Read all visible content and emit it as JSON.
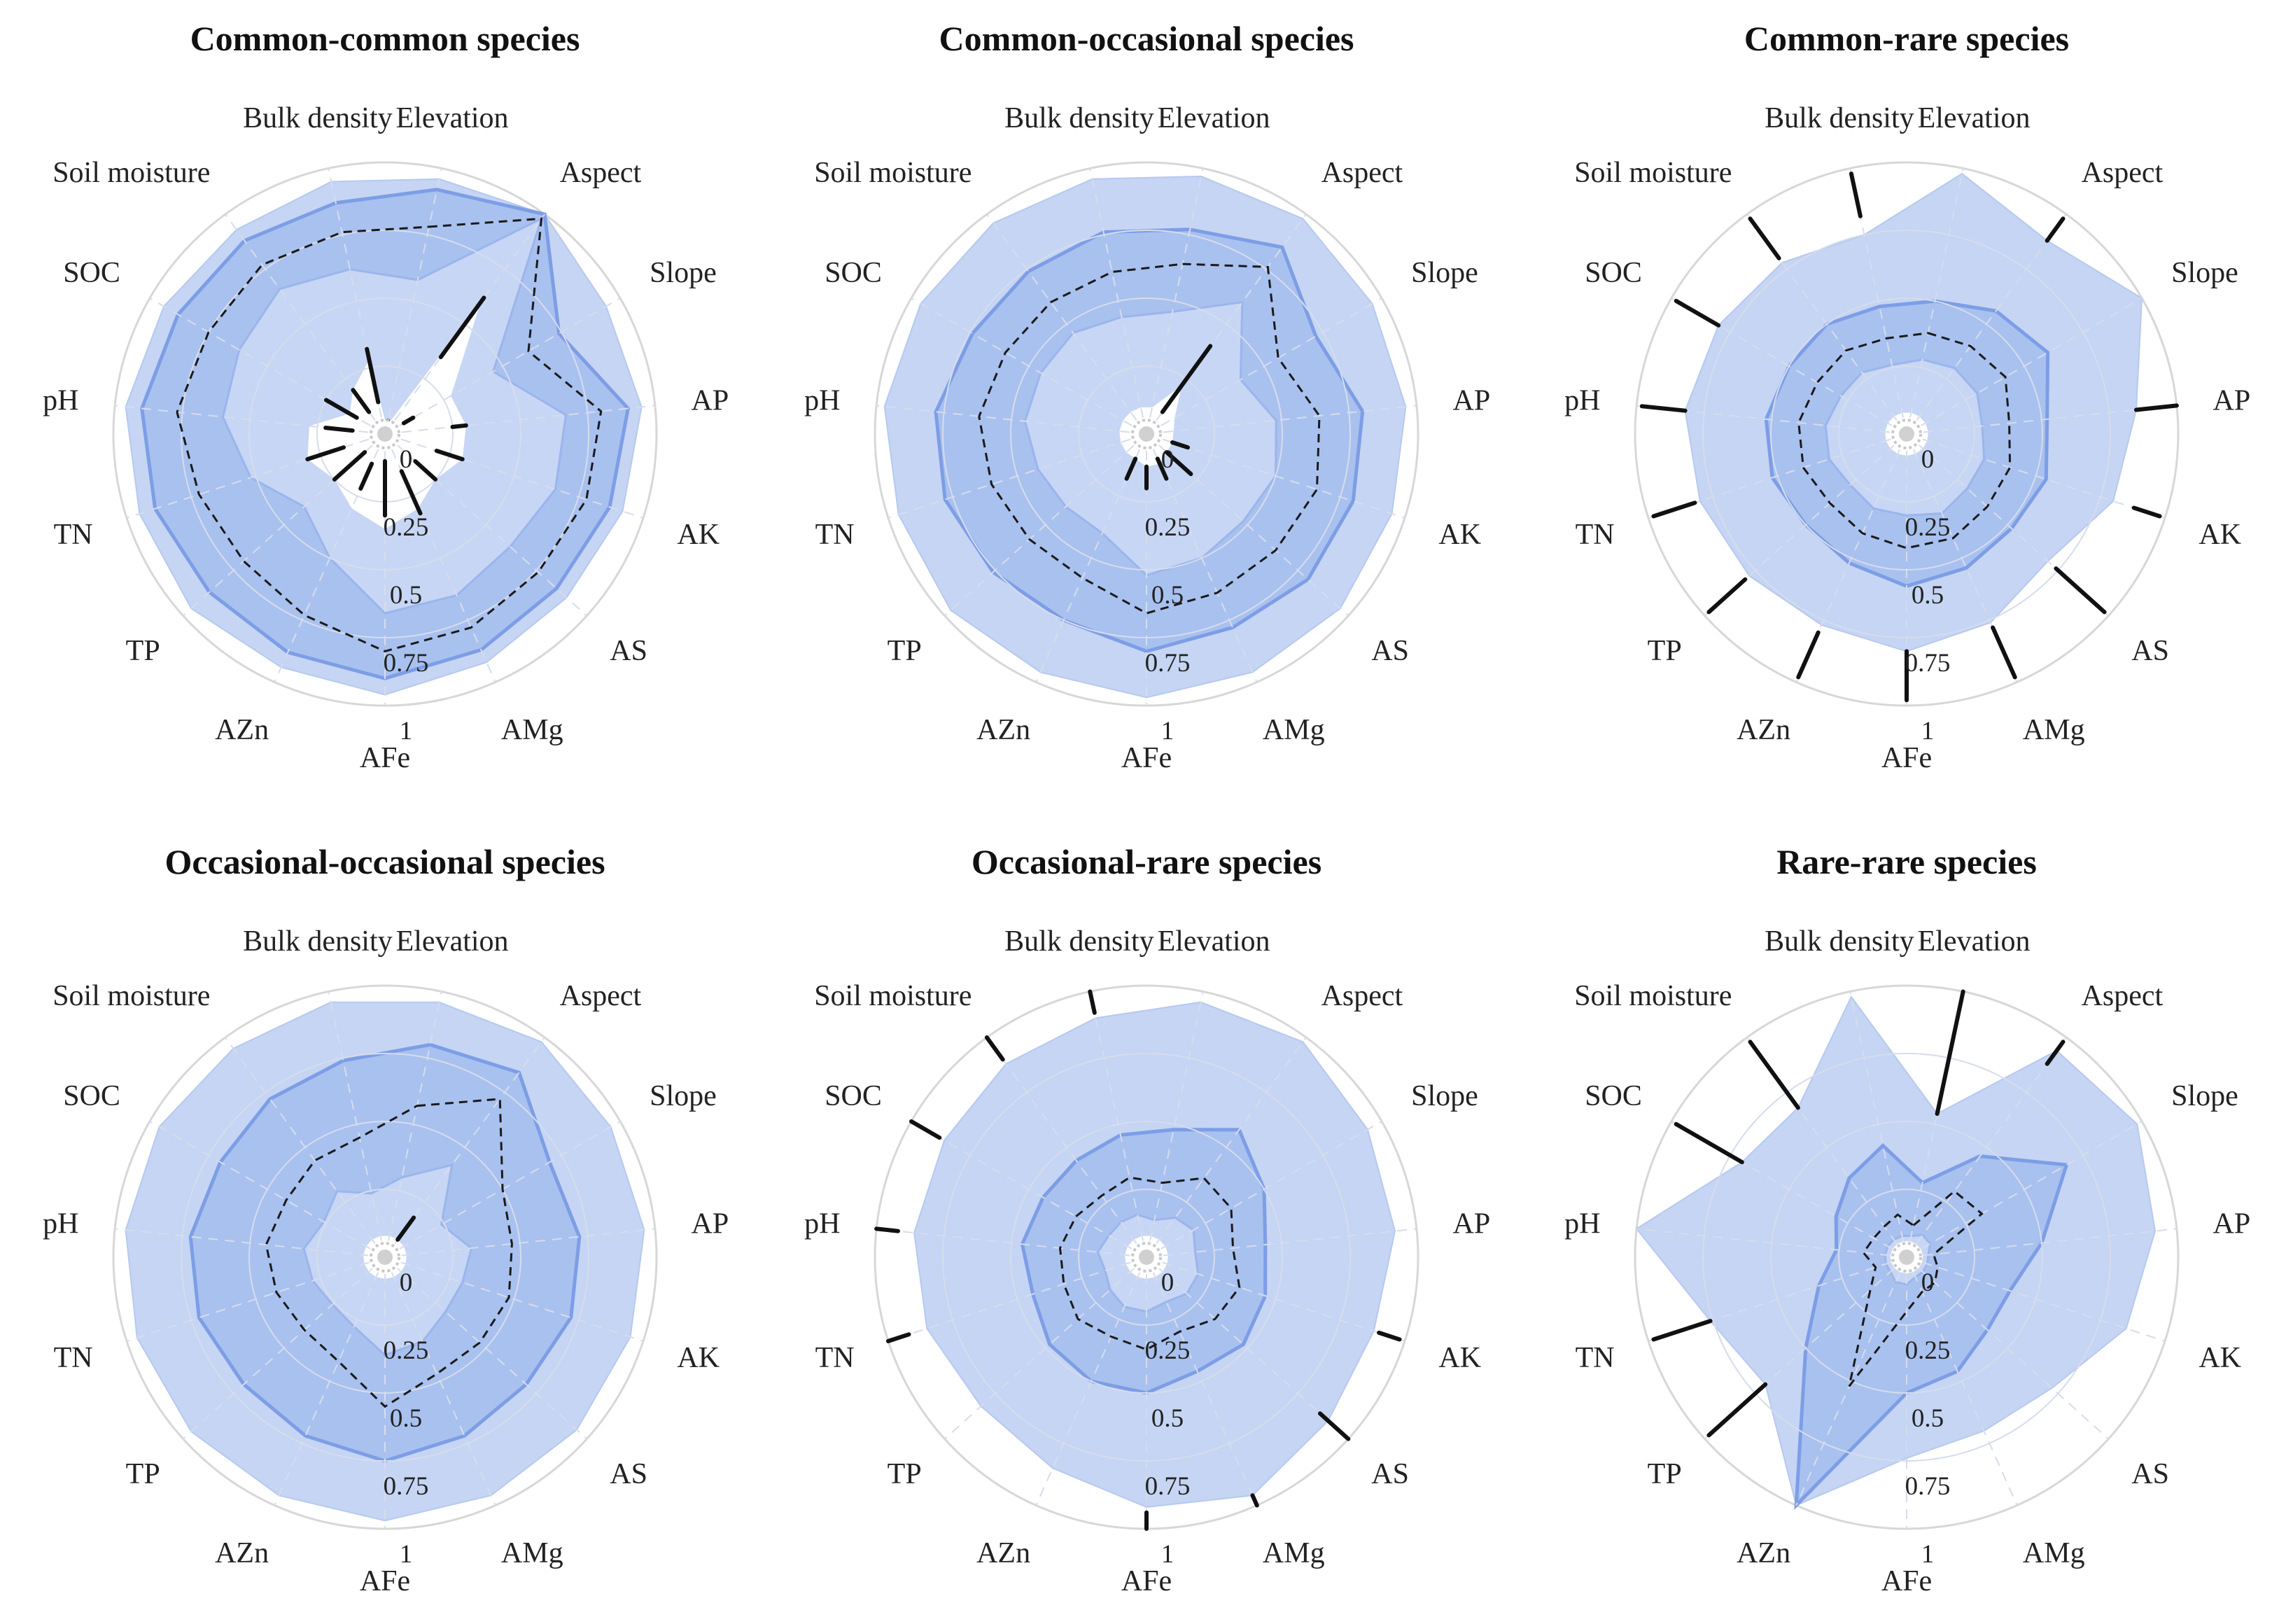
{
  "chart_data": [
    {
      "type": "radar",
      "title": "Common-common species",
      "axes": [
        "Elevation",
        "Aspect",
        "Slope",
        "AP",
        "AK",
        "AS",
        "AMg",
        "AFe",
        "AZn",
        "TP",
        "TN",
        "pH",
        "SOC",
        "Soil moisture",
        "Bulk density"
      ],
      "ticks": [
        "0",
        "0.25",
        "0.5",
        "0.75",
        "1"
      ],
      "rlim": [
        0,
        1
      ],
      "bands": {
        "outer": [
          0.96,
          1.0,
          0.94,
          0.95,
          0.92,
          0.9,
          0.92,
          0.96,
          0.94,
          0.96,
          0.95,
          0.96,
          0.94,
          0.93,
          0.95
        ],
        "q75": [
          0.92,
          1.0,
          0.74,
          0.9,
          0.87,
          0.85,
          0.87,
          0.9,
          0.88,
          0.87,
          0.89,
          0.9,
          0.88,
          0.88,
          0.87
        ],
        "median": [
          0.78,
          0.98,
          0.61,
          0.8,
          0.78,
          0.76,
          0.78,
          0.8,
          0.73,
          0.7,
          0.72,
          0.77,
          0.75,
          0.77,
          0.76
        ],
        "q25": [
          0.58,
          0.98,
          0.46,
          0.67,
          0.66,
          0.62,
          0.65,
          0.66,
          0.5,
          0.4,
          0.52,
          0.6,
          0.62,
          0.66,
          0.62
        ]
      },
      "inner_extent": [
        0.03,
        0.6,
        0.28,
        0.3,
        0.3,
        0.25,
        0.3,
        0.35,
        0.3,
        0.25,
        0.3,
        0.28,
        0.15,
        0.2,
        0.28
      ],
      "spikes": [
        {
          "axis": "Elevation",
          "from": 0.03,
          "to": 0.05
        },
        {
          "axis": "Aspect",
          "from": 0.35,
          "to": 0.62
        },
        {
          "axis": "Slope",
          "from": 0.08,
          "to": 0.12
        },
        {
          "axis": "AP",
          "from": 0.25,
          "to": 0.3
        },
        {
          "axis": "AK",
          "from": 0.2,
          "to": 0.3
        },
        {
          "axis": "AS",
          "from": 0.15,
          "to": 0.25
        },
        {
          "axis": "AMg",
          "from": 0.15,
          "to": 0.32
        },
        {
          "axis": "AFe",
          "from": 0.1,
          "to": 0.3
        },
        {
          "axis": "AZn",
          "from": 0.12,
          "to": 0.22
        },
        {
          "axis": "TP",
          "from": 0.1,
          "to": 0.25
        },
        {
          "axis": "TN",
          "from": 0.16,
          "to": 0.3
        },
        {
          "axis": "pH",
          "from": 0.12,
          "to": 0.22
        },
        {
          "axis": "SOC",
          "from": 0.12,
          "to": 0.25
        },
        {
          "axis": "Soil moisture",
          "from": 0.1,
          "to": 0.2
        },
        {
          "axis": "Bulk density",
          "from": 0.12,
          "to": 0.32
        }
      ]
    },
    {
      "type": "radar",
      "title": "Common-occasional species",
      "axes": [
        "Elevation",
        "Aspect",
        "Slope",
        "AP",
        "AK",
        "AS",
        "AMg",
        "AFe",
        "AZn",
        "TP",
        "TN",
        "pH",
        "SOC",
        "Soil moisture",
        "Bulk density"
      ],
      "ticks": [
        "0",
        "0.25",
        "0.5",
        "0.75",
        "1"
      ],
      "rlim": [
        0,
        1
      ],
      "bands": {
        "outer": [
          0.97,
          0.98,
          0.96,
          0.96,
          0.95,
          0.96,
          0.96,
          0.97,
          0.96,
          0.97,
          0.96,
          0.97,
          0.96,
          0.96,
          0.96
        ],
        "q75": [
          0.77,
          0.85,
          0.72,
          0.8,
          0.8,
          0.8,
          0.78,
          0.8,
          0.75,
          0.76,
          0.78,
          0.78,
          0.74,
          0.74,
          0.76
        ],
        "median": [
          0.64,
          0.76,
          0.56,
          0.64,
          0.66,
          0.64,
          0.64,
          0.66,
          0.58,
          0.58,
          0.6,
          0.62,
          0.6,
          0.6,
          0.61
        ],
        "q25": [
          0.46,
          0.6,
          0.4,
          0.48,
          0.5,
          0.48,
          0.5,
          0.52,
          0.4,
          0.4,
          0.42,
          0.45,
          0.45,
          0.46,
          0.44
        ]
      },
      "inner_extent": [
        0.1,
        0.22,
        0.12,
        0.1,
        0.1,
        0.1,
        0.12,
        0.12,
        0.1,
        0.1,
        0.1,
        0.1,
        0.1,
        0.1,
        0.1
      ],
      "spikes": [
        {
          "axis": "Aspect",
          "from": 0.1,
          "to": 0.4
        },
        {
          "axis": "AK",
          "from": 0.1,
          "to": 0.16
        },
        {
          "axis": "AS",
          "from": 0.1,
          "to": 0.22
        },
        {
          "axis": "AMg",
          "from": 0.1,
          "to": 0.18
        },
        {
          "axis": "AFe",
          "from": 0.12,
          "to": 0.2
        },
        {
          "axis": "AZn",
          "from": 0.1,
          "to": 0.18
        }
      ]
    },
    {
      "type": "radar",
      "title": "Common-rare species",
      "axes": [
        "Elevation",
        "Aspect",
        "Slope",
        "AP",
        "AK",
        "AS",
        "AMg",
        "AFe",
        "AZn",
        "TP",
        "TN",
        "pH",
        "SOC",
        "Soil moisture",
        "Bulk density"
      ],
      "ticks": [
        "0",
        "0.25",
        "0.5",
        "0.75",
        "1"
      ],
      "rlim": [
        0,
        1
      ],
      "bands": {
        "outer": [
          0.98,
          0.88,
          1.0,
          0.85,
          0.8,
          0.7,
          0.76,
          0.8,
          0.77,
          0.78,
          0.8,
          0.82,
          0.8,
          0.78,
          0.75
        ],
        "q75": [
          0.5,
          0.56,
          0.6,
          0.52,
          0.54,
          0.52,
          0.54,
          0.56,
          0.52,
          0.5,
          0.52,
          0.52,
          0.5,
          0.5,
          0.48
        ],
        "median": [
          0.38,
          0.4,
          0.42,
          0.38,
          0.4,
          0.4,
          0.42,
          0.42,
          0.4,
          0.38,
          0.4,
          0.4,
          0.38,
          0.38,
          0.36
        ],
        "q25": [
          0.28,
          0.3,
          0.3,
          0.28,
          0.3,
          0.3,
          0.32,
          0.3,
          0.3,
          0.28,
          0.3,
          0.3,
          0.28,
          0.28,
          0.26
        ]
      },
      "inner_extent": [
        0.08,
        0.08,
        0.08,
        0.08,
        0.08,
        0.08,
        0.08,
        0.08,
        0.08,
        0.08,
        0.08,
        0.08,
        0.08,
        0.08,
        0.08
      ],
      "spikes": [
        {
          "axis": "Bulk density",
          "from": 0.82,
          "to": 0.98
        },
        {
          "axis": "Aspect",
          "from": 0.88,
          "to": 0.98
        },
        {
          "axis": "AP",
          "from": 0.85,
          "to": 1.0
        },
        {
          "axis": "AK",
          "from": 0.88,
          "to": 0.98
        },
        {
          "axis": "AS",
          "from": 0.74,
          "to": 0.98
        },
        {
          "axis": "AMg",
          "from": 0.78,
          "to": 0.98
        },
        {
          "axis": "AFe",
          "from": 0.8,
          "to": 0.98
        },
        {
          "axis": "AZn",
          "from": 0.8,
          "to": 0.98
        },
        {
          "axis": "TP",
          "from": 0.8,
          "to": 0.98
        },
        {
          "axis": "TN",
          "from": 0.82,
          "to": 0.98
        },
        {
          "axis": "pH",
          "from": 0.82,
          "to": 0.98
        },
        {
          "axis": "SOC",
          "from": 0.8,
          "to": 0.98
        },
        {
          "axis": "Soil moisture",
          "from": 0.8,
          "to": 0.98
        }
      ]
    },
    {
      "type": "radar",
      "title": "Occasional-occasional species",
      "axes": [
        "Elevation",
        "Aspect",
        "Slope",
        "AP",
        "AK",
        "AS",
        "AMg",
        "AFe",
        "AZn",
        "TP",
        "TN",
        "pH",
        "SOC",
        "Soil moisture",
        "Bulk density"
      ],
      "ticks": [
        "0",
        "0.25",
        "0.5",
        "0.75",
        "1"
      ],
      "rlim": [
        0,
        1
      ],
      "bands": {
        "outer": [
          0.96,
          0.98,
          0.96,
          0.96,
          0.95,
          0.95,
          0.96,
          0.97,
          0.96,
          0.96,
          0.96,
          0.96,
          0.96,
          0.95,
          0.96
        ],
        "q75": [
          0.8,
          0.84,
          0.7,
          0.72,
          0.72,
          0.7,
          0.72,
          0.75,
          0.72,
          0.7,
          0.72,
          0.72,
          0.7,
          0.72,
          0.74
        ],
        "median": [
          0.57,
          0.72,
          0.5,
          0.47,
          0.48,
          0.47,
          0.47,
          0.55,
          0.42,
          0.4,
          0.42,
          0.44,
          0.42,
          0.44,
          0.45
        ],
        "q25": [
          0.3,
          0.42,
          0.24,
          0.32,
          0.3,
          0.3,
          0.34,
          0.36,
          0.28,
          0.26,
          0.28,
          0.3,
          0.26,
          0.3,
          0.24
        ]
      },
      "inner_extent": [
        0.08,
        0.08,
        0.08,
        0.08,
        0.08,
        0.08,
        0.08,
        0.08,
        0.08,
        0.08,
        0.08,
        0.08,
        0.08,
        0.08,
        0.08
      ],
      "spikes": [
        {
          "axis": "Aspect",
          "from": 0.08,
          "to": 0.18
        }
      ]
    },
    {
      "type": "radar",
      "title": "Occasional-rare species",
      "axes": [
        "Elevation",
        "Aspect",
        "Slope",
        "AP",
        "AK",
        "AS",
        "AMg",
        "AFe",
        "AZn",
        "TP",
        "TN",
        "pH",
        "SOC",
        "Soil moisture",
        "Bulk density"
      ],
      "ticks": [
        "0",
        "0.25",
        "0.5",
        "0.75",
        "1"
      ],
      "rlim": [
        0,
        1
      ],
      "bands": {
        "outer": [
          0.96,
          0.98,
          0.94,
          0.92,
          0.88,
          0.9,
          0.96,
          0.92,
          0.85,
          0.82,
          0.85,
          0.86,
          0.86,
          0.88,
          0.9
        ],
        "q75": [
          0.48,
          0.58,
          0.5,
          0.44,
          0.46,
          0.48,
          0.46,
          0.5,
          0.5,
          0.48,
          0.44,
          0.46,
          0.44,
          0.44,
          0.46
        ],
        "median": [
          0.28,
          0.36,
          0.36,
          0.32,
          0.36,
          0.34,
          0.3,
          0.34,
          0.32,
          0.34,
          0.32,
          0.32,
          0.3,
          0.28,
          0.3
        ],
        "q25": [
          0.14,
          0.18,
          0.2,
          0.18,
          0.2,
          0.2,
          0.18,
          0.2,
          0.2,
          0.18,
          0.16,
          0.18,
          0.16,
          0.16,
          0.16
        ]
      },
      "inner_extent": [
        0.08,
        0.08,
        0.08,
        0.08,
        0.08,
        0.08,
        0.08,
        0.08,
        0.08,
        0.08,
        0.08,
        0.08,
        0.08,
        0.08,
        0.08
      ],
      "spikes": [
        {
          "axis": "Bulk density",
          "from": 0.92,
          "to": 1.0
        },
        {
          "axis": "AK",
          "from": 0.9,
          "to": 0.98
        },
        {
          "axis": "AS",
          "from": 0.86,
          "to": 1.0
        },
        {
          "axis": "AMg",
          "from": 0.96,
          "to": 1.0
        },
        {
          "axis": "AFe",
          "from": 0.94,
          "to": 1.0
        },
        {
          "axis": "TN",
          "from": 0.92,
          "to": 1.0
        },
        {
          "axis": "pH",
          "from": 0.92,
          "to": 1.0
        },
        {
          "axis": "SOC",
          "from": 0.88,
          "to": 1.0
        },
        {
          "axis": "Soil moisture",
          "from": 0.9,
          "to": 1.0
        }
      ]
    },
    {
      "type": "radar",
      "title": "Rare-rare species",
      "axes": [
        "Elevation",
        "Aspect",
        "Slope",
        "AP",
        "AK",
        "AS",
        "AMg",
        "AFe",
        "AZn",
        "TP",
        "TN",
        "pH",
        "SOC",
        "Soil moisture",
        "Bulk density"
      ],
      "ticks": [
        "0",
        "0.25",
        "0.5",
        "0.75",
        "1"
      ],
      "rlim": [
        0,
        1
      ],
      "bands": {
        "outer": [
          0.54,
          0.94,
          0.98,
          0.92,
          0.85,
          0.72,
          0.7,
          0.74,
          1.0,
          0.7,
          0.76,
          1.0,
          0.7,
          0.68,
          0.98
        ],
        "q75": [
          0.28,
          0.46,
          0.68,
          0.5,
          0.4,
          0.4,
          0.46,
          0.5,
          1.0,
          0.5,
          0.34,
          0.26,
          0.3,
          0.36,
          0.42
        ],
        "median": [
          0.12,
          0.3,
          0.32,
          0.1,
          0.12,
          0.14,
          0.14,
          0.2,
          0.52,
          0.18,
          0.12,
          0.16,
          0.14,
          0.14,
          0.16
        ],
        "q25": [
          0.08,
          0.1,
          0.1,
          0.08,
          0.08,
          0.08,
          0.08,
          0.1,
          0.1,
          0.08,
          0.08,
          0.08,
          0.08,
          0.08,
          0.08
        ]
      },
      "inner_extent": [
        0.06,
        0.06,
        0.06,
        0.06,
        0.06,
        0.06,
        0.06,
        0.06,
        0.06,
        0.06,
        0.06,
        0.06,
        0.06,
        0.06,
        0.06
      ],
      "spikes": [
        {
          "axis": "Elevation",
          "from": 0.54,
          "to": 1.0
        },
        {
          "axis": "Aspect",
          "from": 0.88,
          "to": 0.98
        },
        {
          "axis": "TP",
          "from": 0.7,
          "to": 0.98
        },
        {
          "axis": "TN",
          "from": 0.76,
          "to": 0.98
        },
        {
          "axis": "SOC",
          "from": 0.7,
          "to": 0.98
        },
        {
          "axis": "Soil moisture",
          "from": 0.68,
          "to": 0.98
        }
      ]
    }
  ]
}
